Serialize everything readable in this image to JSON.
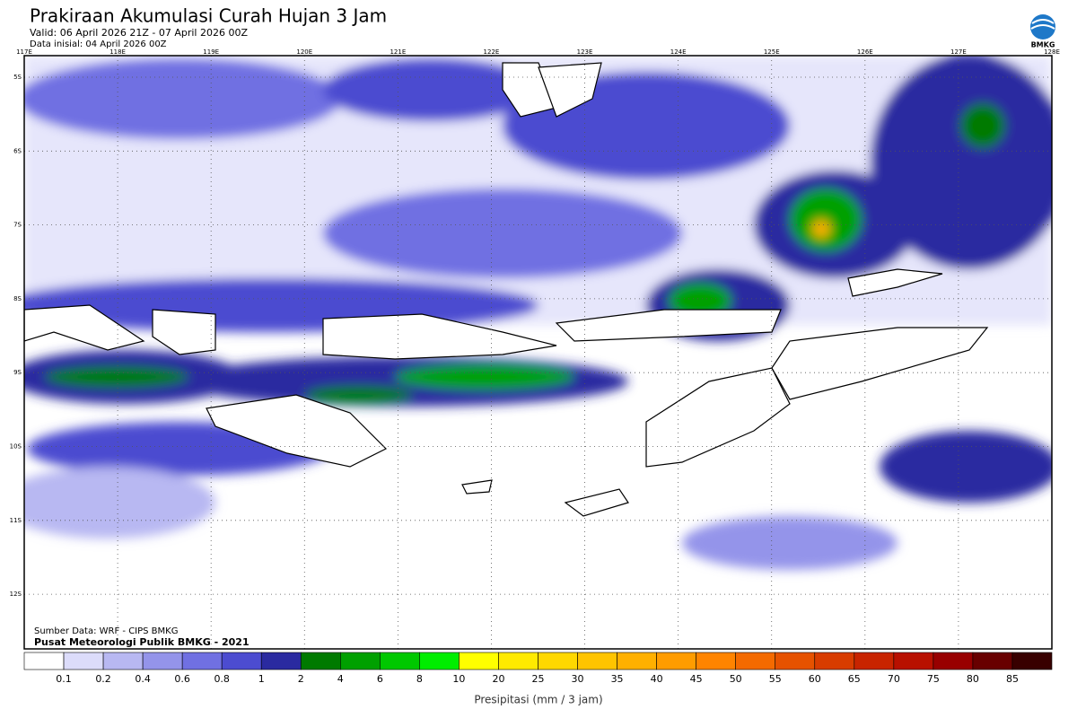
{
  "header": {
    "title": "Prakiraan Akumulasi Curah Hujan 3 Jam",
    "valid": "Valid: 06 April 2026 21Z - 07 April 2026 00Z",
    "initial": "Data inisial: 04 April 2026 00Z",
    "logo_text": "BMKG"
  },
  "map": {
    "lon_labels": [
      "117E",
      "118E",
      "119E",
      "120E",
      "121E",
      "122E",
      "123E",
      "124E",
      "125E",
      "126E",
      "127E",
      "128E"
    ],
    "lat_labels": [
      "5S",
      "6S",
      "7S",
      "8S",
      "9S",
      "10S",
      "11S",
      "12S"
    ],
    "source": "Sumber Data: WRF - CIPS BMKG",
    "credit": "Pusat Meteorologi Publik BMKG - 2021"
  },
  "legend": {
    "colors": [
      "#ffffff",
      "#dcdcfa",
      "#b8b8f2",
      "#9494ea",
      "#7070e2",
      "#4c4cd0",
      "#2a2aa0",
      "#007a00",
      "#00a000",
      "#00c800",
      "#00ee00",
      "#ffff00",
      "#ffea00",
      "#ffd800",
      "#ffc400",
      "#ffb000",
      "#ff9c00",
      "#ff8400",
      "#f46a00",
      "#e65200",
      "#d83c00",
      "#c82400",
      "#b81000",
      "#980000",
      "#680000",
      "#380000"
    ],
    "labels": [
      0.1,
      0.2,
      0.4,
      0.6,
      0.8,
      1,
      2,
      4,
      6,
      8,
      10,
      20,
      25,
      30,
      35,
      40,
      45,
      50,
      55,
      60,
      65,
      70,
      75,
      80,
      85
    ],
    "axis_label": "Presipitasi (mm / 3 jam)"
  }
}
